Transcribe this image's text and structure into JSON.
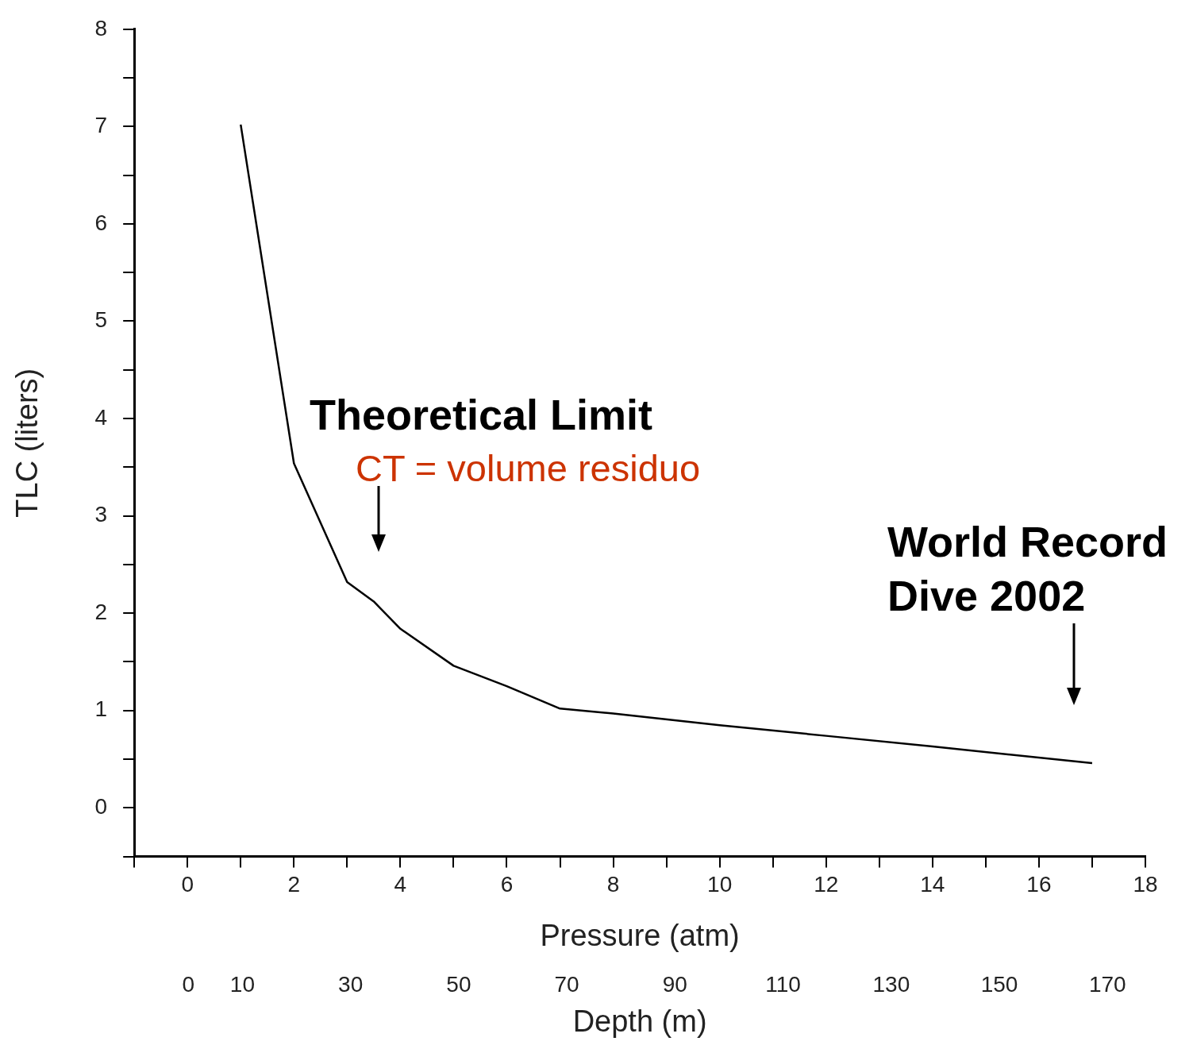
{
  "chart_data": {
    "type": "line",
    "xlabel": "Pressure (atm)",
    "ylabel": "TLC (liters)",
    "x2label": "Depth (m)",
    "x": [
      1,
      2,
      3,
      3.5,
      4,
      5,
      6,
      7,
      8,
      10,
      12,
      14,
      17
    ],
    "values": [
      7.02,
      3.54,
      2.32,
      2.12,
      1.84,
      1.46,
      1.25,
      1.02,
      0.97,
      0.85,
      0.74,
      0.63,
      0.46
    ],
    "color": "#000000",
    "marker": "none",
    "xlim": [
      -1,
      18
    ],
    "ylim": [
      -0.5,
      8
    ],
    "xticks": [
      {
        "value": -1,
        "label": null
      },
      0,
      {
        "value": 1,
        "label": null
      },
      2,
      {
        "value": 3,
        "label": null
      },
      4,
      {
        "value": 5,
        "label": null
      },
      6,
      {
        "value": 7,
        "label": null
      },
      8,
      {
        "value": 9,
        "label": null
      },
      10,
      {
        "value": 11,
        "label": null
      },
      12,
      {
        "value": 13,
        "label": null
      },
      14,
      {
        "value": 15,
        "label": null
      },
      16,
      {
        "value": 17,
        "label": null
      },
      18
    ],
    "yticks": [
      {
        "value": -0.5,
        "label": null
      },
      0,
      {
        "value": 0.5,
        "label": null
      },
      1,
      {
        "value": 1.5,
        "label": null
      },
      2,
      {
        "value": 2.5,
        "label": null
      },
      3,
      {
        "value": 3.5,
        "label": null
      },
      4,
      {
        "value": 4.5,
        "label": null
      },
      5,
      {
        "value": 5.5,
        "label": null
      },
      6,
      {
        "value": 6.5,
        "label": null
      },
      7,
      {
        "value": 7.5,
        "label": null
      },
      8
    ],
    "x2lim": [
      -10,
      177
    ],
    "x2ticks": [
      0,
      10,
      30,
      50,
      70,
      90,
      110,
      130,
      150,
      170
    ],
    "annotations": [
      "Theoretical Limit",
      "CT = volume residuo",
      "World Record\nDive 2002"
    ]
  }
}
